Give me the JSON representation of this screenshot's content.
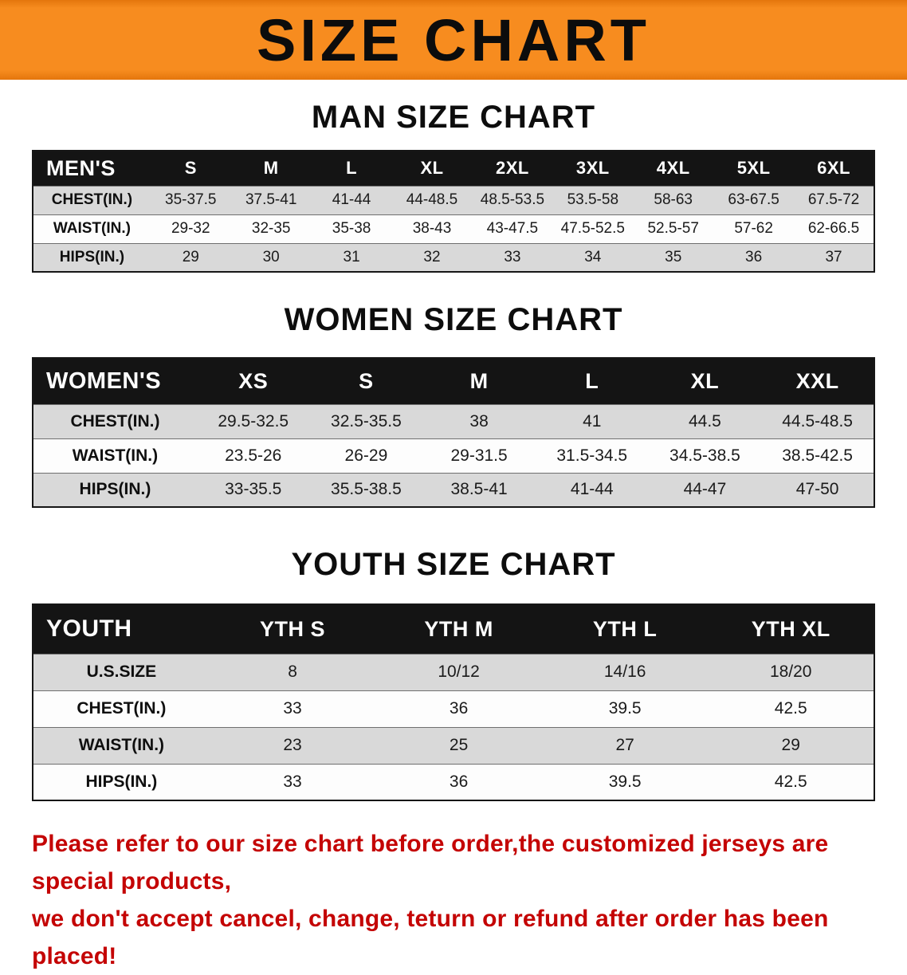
{
  "banner": {
    "title": "SIZE CHART",
    "bg_color": "#F78C1F"
  },
  "sections": [
    {
      "id": "men",
      "heading": "MAN SIZE CHART",
      "table": {
        "corner_label": "MEN'S",
        "columns": [
          "S",
          "M",
          "L",
          "XL",
          "2XL",
          "3XL",
          "4XL",
          "5XL",
          "6XL"
        ],
        "rows": [
          {
            "label": "CHEST(IN.)",
            "values": [
              "35-37.5",
              "37.5-41",
              "41-44",
              "44-48.5",
              "48.5-53.5",
              "53.5-58",
              "58-63",
              "63-67.5",
              "67.5-72"
            ]
          },
          {
            "label": "WAIST(IN.)",
            "values": [
              "29-32",
              "32-35",
              "35-38",
              "38-43",
              "43-47.5",
              "47.5-52.5",
              "52.5-57",
              "57-62",
              "62-66.5"
            ]
          },
          {
            "label": "HIPS(IN.)",
            "values": [
              "29",
              "30",
              "31",
              "32",
              "33",
              "34",
              "35",
              "36",
              "37"
            ]
          }
        ]
      }
    },
    {
      "id": "women",
      "heading": "WOMEN SIZE CHART",
      "table": {
        "corner_label": "WOMEN'S",
        "columns": [
          "XS",
          "S",
          "M",
          "L",
          "XL",
          "XXL"
        ],
        "rows": [
          {
            "label": "CHEST(IN.)",
            "values": [
              "29.5-32.5",
              "32.5-35.5",
              "38",
              "41",
              "44.5",
              "44.5-48.5"
            ]
          },
          {
            "label": "WAIST(IN.)",
            "values": [
              "23.5-26",
              "26-29",
              "29-31.5",
              "31.5-34.5",
              "34.5-38.5",
              "38.5-42.5"
            ]
          },
          {
            "label": "HIPS(IN.)",
            "values": [
              "33-35.5",
              "35.5-38.5",
              "38.5-41",
              "41-44",
              "44-47",
              "47-50"
            ]
          }
        ]
      }
    },
    {
      "id": "youth",
      "heading": "YOUTH SIZE CHART",
      "table": {
        "corner_label": "YOUTH",
        "columns": [
          "YTH S",
          "YTH M",
          "YTH L",
          "YTH XL"
        ],
        "rows": [
          {
            "label": "U.S.SIZE",
            "values": [
              "8",
              "10/12",
              "14/16",
              "18/20"
            ]
          },
          {
            "label": "CHEST(IN.)",
            "values": [
              "33",
              "36",
              "39.5",
              "42.5"
            ]
          },
          {
            "label": "WAIST(IN.)",
            "values": [
              "23",
              "25",
              "27",
              "29"
            ]
          },
          {
            "label": "HIPS(IN.)",
            "values": [
              "33",
              "36",
              "39.5",
              "42.5"
            ]
          }
        ]
      }
    }
  ],
  "footer": {
    "color": "#C40404",
    "lines": [
      "Please refer to our size chart before order,the customized jerseys are special products,",
      "we don't accept cancel, change, teturn or refund after order has been placed!"
    ]
  }
}
